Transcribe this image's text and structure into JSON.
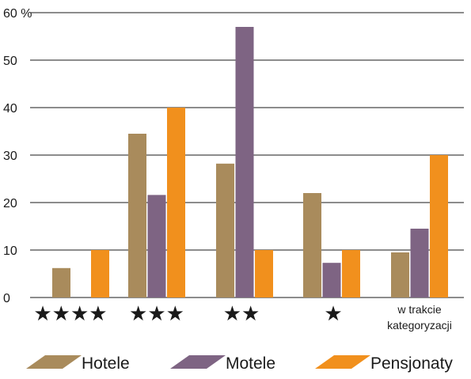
{
  "chart_data": {
    "type": "bar",
    "categories": [
      "★★★★",
      "★★★",
      "★★",
      "★",
      "w trakcie kategoryzacji"
    ],
    "series": [
      {
        "name": "Hotele",
        "color": "#a98b5c",
        "values": [
          6.2,
          34.5,
          28.2,
          22,
          9.5
        ]
      },
      {
        "name": "Motele",
        "color": "#7e6483",
        "values": [
          0,
          21.6,
          57,
          7.3,
          14.5
        ]
      },
      {
        "name": "Pensjonaty",
        "color": "#f1901d",
        "values": [
          10,
          40,
          10,
          10,
          30
        ]
      }
    ],
    "yticks": [
      "0",
      "10",
      "20",
      "30",
      "40",
      "50",
      "60 %"
    ],
    "ylim": [
      0,
      60
    ],
    "grid": true,
    "legend": "bottom"
  }
}
